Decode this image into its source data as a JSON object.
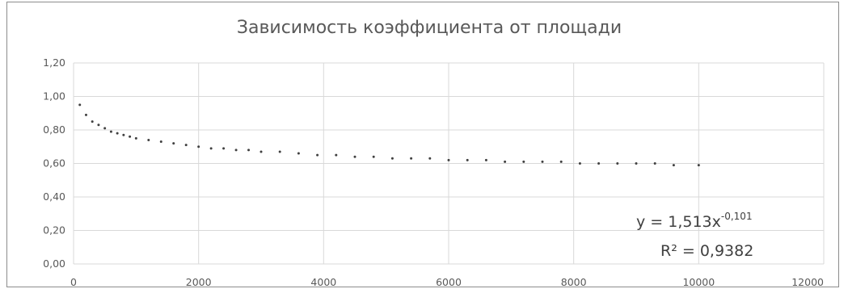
{
  "chart_data": {
    "type": "scatter",
    "title": "Зависимость  коэффициента от площади",
    "xlabel": "",
    "ylabel": "",
    "xlim": [
      0,
      12000
    ],
    "ylim": [
      0,
      1.2
    ],
    "x_ticks": [
      0,
      2000,
      4000,
      6000,
      8000,
      10000,
      12000
    ],
    "x_tick_labels": [
      "0",
      "2000",
      "4000",
      "6000",
      "8000",
      "10000",
      "12000"
    ],
    "y_ticks": [
      0,
      0.2,
      0.4,
      0.6,
      0.8,
      1.0,
      1.2
    ],
    "y_tick_labels": [
      "0,00",
      "0,20",
      "0,40",
      "0,60",
      "0,80",
      "1,00",
      "1,20"
    ],
    "grid": true,
    "trendline": {
      "type": "power",
      "coefficient": 1.513,
      "exponent": -0.101,
      "equation_base": "y = 1,513x",
      "equation_exponent": "-0,101",
      "r2_label": "R² = 0,9382"
    },
    "series": [
      {
        "x": [
          100,
          200,
          300,
          400,
          500,
          600,
          700,
          800,
          900,
          1000,
          1200,
          1400,
          1600,
          1800,
          2000,
          2200,
          2400,
          2600,
          2800,
          3000,
          3300,
          3600,
          3900,
          4200,
          4500,
          4800,
          5100,
          5400,
          5700,
          6000,
          6300,
          6600,
          6900,
          7200,
          7500,
          7800,
          8100,
          8400,
          8700,
          9000,
          9300,
          9600,
          10000
        ],
        "y": [
          0.95,
          0.89,
          0.85,
          0.83,
          0.81,
          0.79,
          0.78,
          0.77,
          0.76,
          0.75,
          0.74,
          0.73,
          0.72,
          0.71,
          0.7,
          0.69,
          0.69,
          0.68,
          0.68,
          0.67,
          0.67,
          0.66,
          0.65,
          0.65,
          0.64,
          0.64,
          0.63,
          0.63,
          0.63,
          0.62,
          0.62,
          0.62,
          0.61,
          0.61,
          0.61,
          0.61,
          0.6,
          0.6,
          0.6,
          0.6,
          0.6,
          0.59,
          0.59
        ]
      }
    ]
  }
}
